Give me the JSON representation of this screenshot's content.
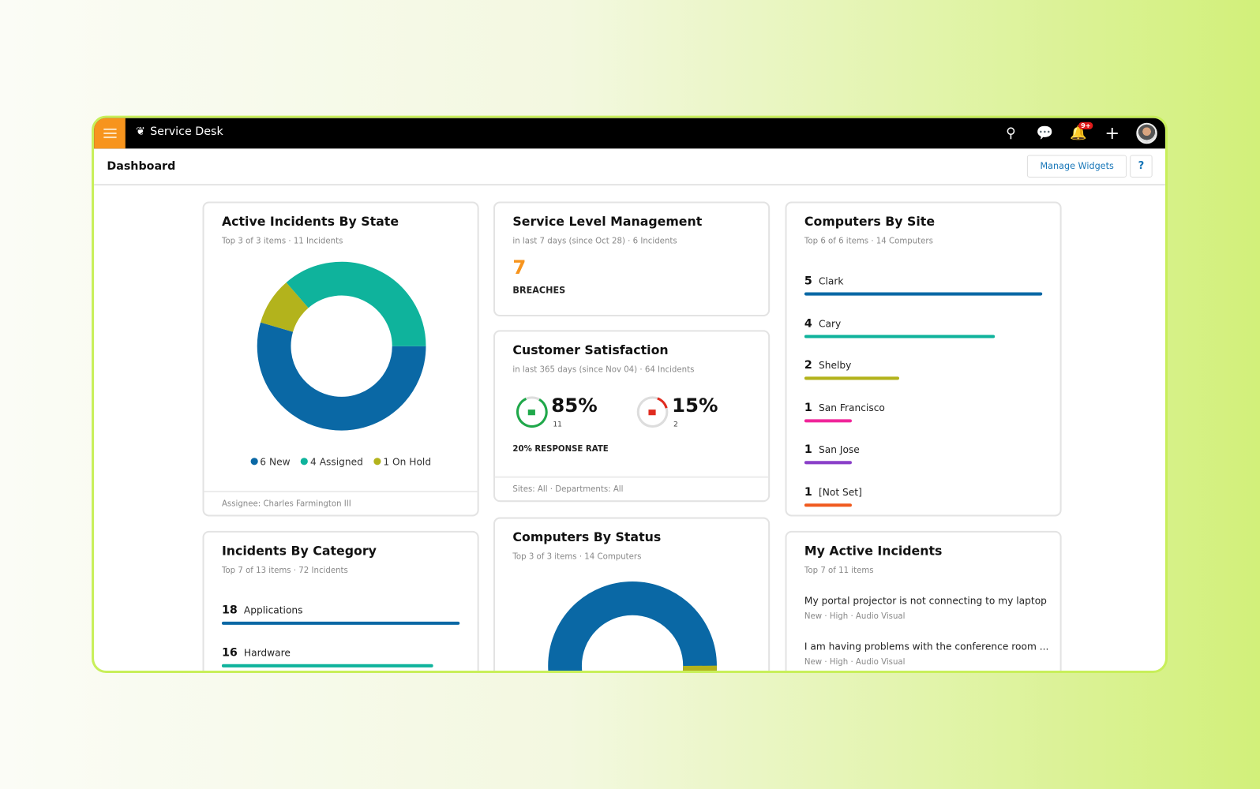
{
  "app": {
    "title": "Service Desk",
    "notification_badge": "9+"
  },
  "header": {
    "title": "Dashboard",
    "manage_widgets": "Manage Widgets",
    "help": "?"
  },
  "colors": {
    "accent": "#f7941d",
    "blue": "#0a68a5",
    "teal": "#0fb39c",
    "olive": "#b3b31c",
    "pink": "#f0259a",
    "purple": "#8a3fc8",
    "orange": "#f05a1e",
    "link": "#1776b8"
  },
  "active_incidents": {
    "title": "Active Incidents By State",
    "subtitle": "Top 3 of 3 items  ·  11 Incidents",
    "segments": [
      {
        "label": "6 New",
        "value": 6,
        "color": "#0a68a5"
      },
      {
        "label": "1 On Hold",
        "value": 1,
        "color": "#b3b31c"
      },
      {
        "label": "4 Assigned",
        "value": 4,
        "color": "#0fb39c"
      }
    ],
    "legend": [
      "6 New",
      "4 Assigned",
      "1 On Hold"
    ],
    "footer": "Assignee: Charles Farmington III"
  },
  "slm": {
    "title": "Service Level Management",
    "subtitle": "in last 7 days (since Oct 28)  ·  6 Incidents",
    "value": "7",
    "label": "BREACHES"
  },
  "csat": {
    "title": "Customer Satisfaction",
    "subtitle": "in last 365 days (since Nov 04)  ·  64 Incidents",
    "positive_pct": "85%",
    "positive_count": "11",
    "negative_pct": "15%",
    "negative_count": "2",
    "response_rate": "20% RESPONSE RATE",
    "footer": "Sites: All  ·  Departments: All"
  },
  "computers_status": {
    "title": "Computers By Status",
    "subtitle": "Top 3 of 3 items  ·  14 Computers"
  },
  "computers_site": {
    "title": "Computers By Site",
    "subtitle": "Top 6 of 6 items  ·  14 Computers",
    "items": [
      {
        "count": "5",
        "label": "Clark",
        "value": 5,
        "color": "#0a68a5"
      },
      {
        "count": "4",
        "label": "Cary",
        "value": 4,
        "color": "#0fb39c"
      },
      {
        "count": "2",
        "label": "Shelby",
        "value": 2,
        "color": "#b3b31c"
      },
      {
        "count": "1",
        "label": "San Francisco",
        "value": 1,
        "color": "#f0259a"
      },
      {
        "count": "1",
        "label": "San Jose",
        "value": 1,
        "color": "#8a3fc8"
      },
      {
        "count": "1",
        "label": "[Not Set]",
        "value": 1,
        "color": "#f05a1e"
      }
    ]
  },
  "category": {
    "title": "Incidents By Category",
    "subtitle": "Top 7 of 13 items  ·  72 Incidents",
    "items": [
      {
        "count": "18",
        "label": "Applications",
        "value": 18,
        "color": "#0a68a5"
      },
      {
        "count": "16",
        "label": "Hardware",
        "value": 16,
        "color": "#0fb39c"
      }
    ]
  },
  "my_incidents": {
    "title": "My Active Incidents",
    "subtitle": "Top 7 of 11 items",
    "items": [
      {
        "title": "My portal projector is not connecting to my laptop",
        "meta": "New  ·  High  ·  Audio Visual"
      },
      {
        "title": "I am having problems with the conference room ...",
        "meta": "New  ·  High  ·  Audio Visual"
      }
    ]
  }
}
